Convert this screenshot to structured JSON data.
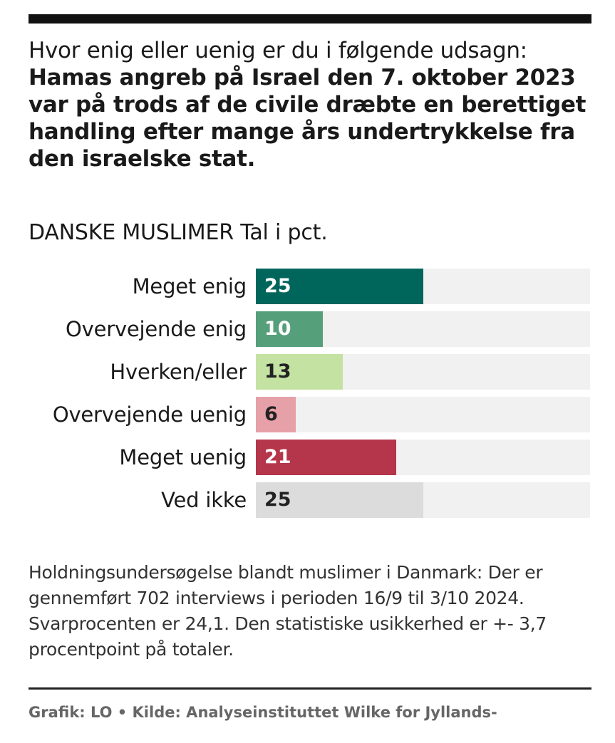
{
  "question": {
    "lead": "Hvor enig eller uenig er du i følgende udsagn: ",
    "statement": "Hamas angreb på Israel den 7. oktober 2023 var på trods af de civile dræbte en berettiget handling efter mange års undertrykkelse fra den israelske stat."
  },
  "subtitle": "DANSKE MUSLIMER Tal i pct.",
  "chart_data": {
    "type": "bar",
    "orientation": "horizontal",
    "title": "DANSKE MUSLIMER Tal i pct.",
    "categories": [
      "Meget enig",
      "Overvejende enig",
      "Hverken/eller",
      "Overvejende uenig",
      "Meget uenig",
      "Ved ikke"
    ],
    "values": [
      25,
      10,
      13,
      6,
      21,
      25
    ],
    "value_labels": [
      "25",
      "10",
      "13",
      "6",
      "21",
      "25"
    ],
    "colors": [
      "#00665c",
      "#55a07a",
      "#c4e2a2",
      "#e6a0a8",
      "#b5364a",
      "#dcdcdc"
    ],
    "label_colors": [
      "#ffffff",
      "#ffffff",
      "#222222",
      "#222222",
      "#ffffff",
      "#222222"
    ],
    "track_color": "#f1f1f1",
    "xlim": [
      0,
      50
    ],
    "grid": false,
    "legend": "none"
  },
  "footnote": "Holdningsundersøgelse blandt muslimer i Danmark: Der er gennemført 702 interviews i perioden 16/9 til 3/10 2024. Svarprocenten er 24,1. Den statistiske usikkerhed er +- 3,7 procentpoint på totaler.",
  "credit": "Grafik: LO • Kilde: Analyseinstituttet Wilke for Jyllands-"
}
